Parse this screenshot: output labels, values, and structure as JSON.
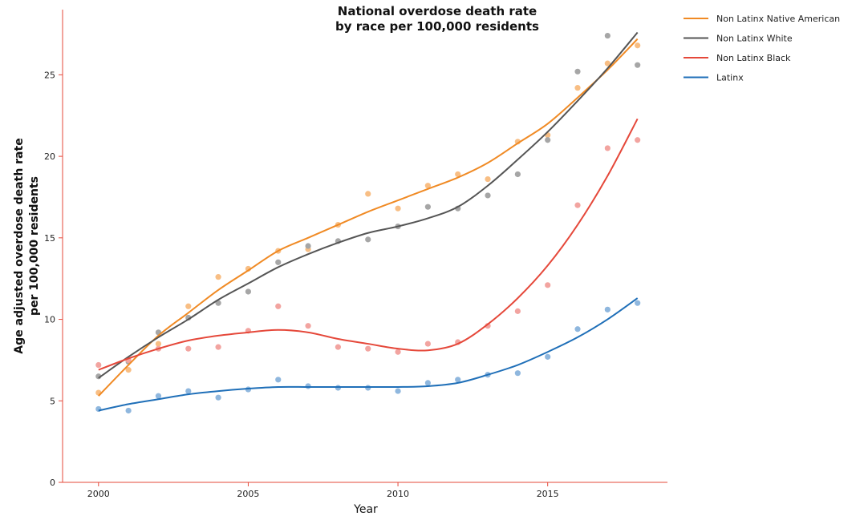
{
  "chart_data": {
    "type": "line",
    "title_lines": [
      "National overdose death rate",
      "by race per 100,000 residents"
    ],
    "xlabel": "Year",
    "ylabel_lines": [
      "Age adjusted overdose death rate",
      "per 100,000 residents"
    ],
    "xlim": [
      1998.8,
      2019.0
    ],
    "ylim": [
      0,
      29
    ],
    "x_ticks": [
      2000,
      2005,
      2010,
      2015
    ],
    "y_ticks": [
      0,
      5,
      10,
      15,
      20,
      25
    ],
    "grid": false,
    "legend_position": "top-right",
    "x": [
      2000,
      2001,
      2002,
      2003,
      2004,
      2005,
      2006,
      2007,
      2008,
      2009,
      2010,
      2011,
      2012,
      2013,
      2014,
      2015,
      2016,
      2017,
      2018
    ],
    "series": [
      {
        "name": "Non Latinx Native American",
        "color": "#F08A24",
        "point_color": "#F8BE84",
        "points": [
          5.5,
          6.9,
          8.5,
          10.8,
          12.6,
          13.1,
          14.2,
          14.3,
          15.8,
          17.7,
          16.8,
          18.2,
          18.9,
          18.6,
          20.9,
          21.3,
          24.2,
          25.7,
          26.8
        ],
        "trend": [
          5.3,
          7.2,
          9.0,
          10.4,
          11.8,
          13.0,
          14.2,
          15.0,
          15.8,
          16.6,
          17.3,
          18.0,
          18.7,
          19.6,
          20.8,
          22.0,
          23.6,
          25.3,
          27.2
        ]
      },
      {
        "name": "Non Latinx White",
        "color": "#555555",
        "point_color": "#A6A6A6",
        "points": [
          6.5,
          7.4,
          9.2,
          10.1,
          11.0,
          11.7,
          13.5,
          14.5,
          14.8,
          14.9,
          15.7,
          16.9,
          16.8,
          17.6,
          18.9,
          21.0,
          25.2,
          27.4,
          25.6
        ],
        "trend": [
          6.4,
          7.7,
          8.9,
          10.0,
          11.2,
          12.2,
          13.2,
          14.0,
          14.7,
          15.3,
          15.7,
          16.2,
          16.9,
          18.2,
          19.8,
          21.5,
          23.4,
          25.4,
          27.6
        ]
      },
      {
        "name": "Non Latinx Black",
        "color": "#E5483A",
        "point_color": "#F2A4A0",
        "points": [
          7.2,
          7.5,
          8.2,
          8.2,
          8.3,
          9.3,
          10.8,
          9.6,
          8.3,
          8.2,
          8.0,
          8.5,
          8.6,
          9.6,
          10.5,
          12.1,
          17.0,
          20.5,
          21.0
        ],
        "trend": [
          6.9,
          7.6,
          8.2,
          8.7,
          9.0,
          9.2,
          9.35,
          9.2,
          8.8,
          8.5,
          8.2,
          8.1,
          8.5,
          9.7,
          11.3,
          13.3,
          15.8,
          18.8,
          22.3
        ]
      },
      {
        "name": "Latinx",
        "color": "#1F6FB8",
        "point_color": "#8FB7DE",
        "points": [
          4.5,
          4.4,
          5.3,
          5.6,
          5.2,
          5.7,
          6.3,
          5.9,
          5.8,
          5.8,
          5.6,
          6.1,
          6.3,
          6.6,
          6.7,
          7.7,
          9.4,
          10.6,
          11.0
        ],
        "trend": [
          4.4,
          4.8,
          5.1,
          5.4,
          5.6,
          5.75,
          5.85,
          5.85,
          5.85,
          5.85,
          5.85,
          5.9,
          6.1,
          6.6,
          7.2,
          8.0,
          8.9,
          10.0,
          11.3
        ]
      }
    ]
  }
}
